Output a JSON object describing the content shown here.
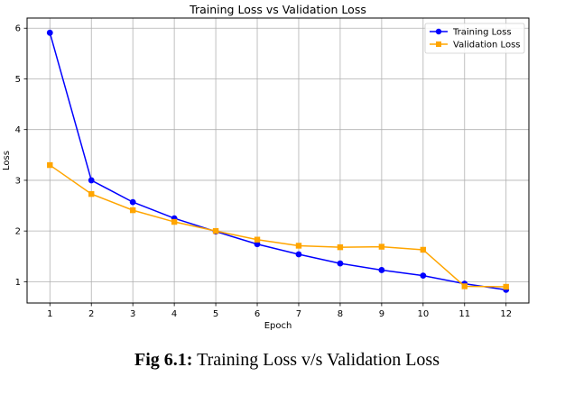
{
  "caption": {
    "label": "Fig 6.1:",
    "text": " Training Loss v/s Validation Loss"
  },
  "chart_data": {
    "type": "line",
    "title": "Training Loss vs Validation Loss",
    "xlabel": "Epoch",
    "ylabel": "Loss",
    "x": [
      1,
      2,
      3,
      4,
      5,
      6,
      7,
      8,
      9,
      10,
      11,
      12
    ],
    "xticks": [
      1,
      2,
      3,
      4,
      5,
      6,
      7,
      8,
      9,
      10,
      11,
      12
    ],
    "yticks": [
      1,
      2,
      3,
      4,
      5,
      6
    ],
    "xlim": [
      0.45,
      12.55
    ],
    "ylim": [
      0.58,
      6.2
    ],
    "grid": true,
    "legend": "top-right",
    "series": [
      {
        "name": "Training Loss",
        "color": "#0000ff",
        "marker": "circle",
        "values": [
          5.91,
          3.0,
          2.57,
          2.25,
          1.99,
          1.74,
          1.54,
          1.36,
          1.23,
          1.12,
          0.96,
          0.84
        ]
      },
      {
        "name": "Validation Loss",
        "color": "#ffa500",
        "marker": "square",
        "values": [
          3.3,
          2.73,
          2.41,
          2.18,
          2.0,
          1.83,
          1.71,
          1.68,
          1.69,
          1.63,
          0.91,
          0.9
        ]
      }
    ]
  }
}
